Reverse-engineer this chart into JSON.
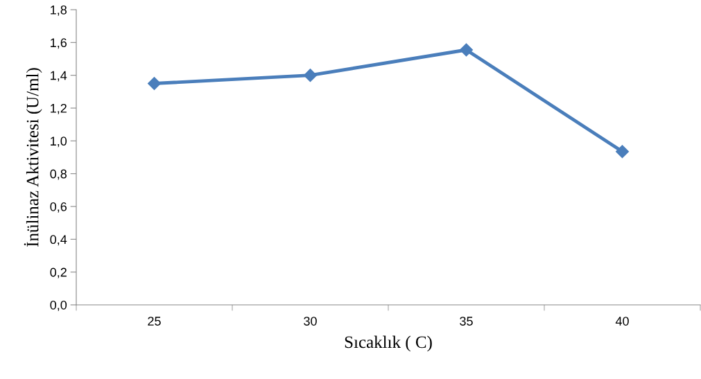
{
  "chart_data": {
    "type": "line",
    "xlabel": "Sıcaklık ( C)",
    "ylabel": "İnülinaz Aktivitesi (U/ml)",
    "categories": [
      "25",
      "30",
      "35",
      "40"
    ],
    "series": [
      {
        "color": "#4a7ebb",
        "values": [
          1.35,
          1.4,
          1.555,
          0.935
        ]
      }
    ],
    "ylim": [
      0,
      1.8
    ],
    "yticks": [
      {
        "value": 0,
        "label": "0,0"
      },
      {
        "value": 0.2,
        "label": "0,2"
      },
      {
        "value": 0.4,
        "label": "0,4"
      },
      {
        "value": 0.6,
        "label": "0,6"
      },
      {
        "value": 0.8,
        "label": "0,8"
      },
      {
        "value": 1.0,
        "label": "1,0"
      },
      {
        "value": 1.2,
        "label": "1,2"
      },
      {
        "value": 1.4,
        "label": "1,4"
      },
      {
        "value": 1.6,
        "label": "1,6"
      },
      {
        "value": 1.8,
        "label": "1,8"
      }
    ],
    "grid": false,
    "legend": false,
    "marker": "diamond",
    "line_style": "solid"
  }
}
